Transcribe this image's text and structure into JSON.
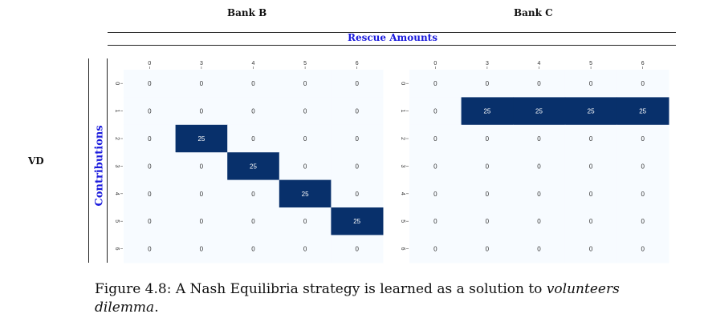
{
  "headers": {
    "bank_b": "Bank B",
    "bank_c": "Bank C",
    "rescue_amounts": "Rescue Amounts",
    "contributions": "Contributions",
    "row_label": "VD"
  },
  "caption": {
    "prefix": "Figure 4.8:  A Nash Equilibria strategy is learned as a solution to ",
    "italic1": "volunteers",
    "italic2": "dilemma",
    "suffix": "."
  },
  "colors": {
    "high": "#08306b",
    "low": "#f7fbff",
    "accent_text": "#1a1adc"
  },
  "chart_data": [
    {
      "type": "heatmap",
      "title": "Bank B",
      "x_ticks": [
        "0",
        "3",
        "4",
        "5",
        "6"
      ],
      "y_ticks": [
        "0",
        "1",
        "2",
        "3",
        "4",
        "5",
        "6"
      ],
      "values": [
        [
          0,
          0,
          0,
          0,
          0
        ],
        [
          0,
          0,
          0,
          0,
          0
        ],
        [
          0,
          25,
          0,
          0,
          0
        ],
        [
          0,
          0,
          25,
          0,
          0
        ],
        [
          0,
          0,
          0,
          25,
          0
        ],
        [
          0,
          0,
          0,
          0,
          25
        ],
        [
          0,
          0,
          0,
          0,
          0
        ]
      ],
      "vmin": 0,
      "vmax": 25
    },
    {
      "type": "heatmap",
      "title": "Bank C",
      "x_ticks": [
        "0",
        "3",
        "4",
        "5",
        "6"
      ],
      "y_ticks": [
        "0",
        "1",
        "2",
        "3",
        "4",
        "5",
        "6"
      ],
      "values": [
        [
          0,
          0,
          0,
          0,
          0
        ],
        [
          0,
          25,
          25,
          25,
          25
        ],
        [
          0,
          0,
          0,
          0,
          0
        ],
        [
          0,
          0,
          0,
          0,
          0
        ],
        [
          0,
          0,
          0,
          0,
          0
        ],
        [
          0,
          0,
          0,
          0,
          0
        ],
        [
          0,
          0,
          0,
          0,
          0
        ]
      ],
      "vmin": 0,
      "vmax": 25
    }
  ]
}
